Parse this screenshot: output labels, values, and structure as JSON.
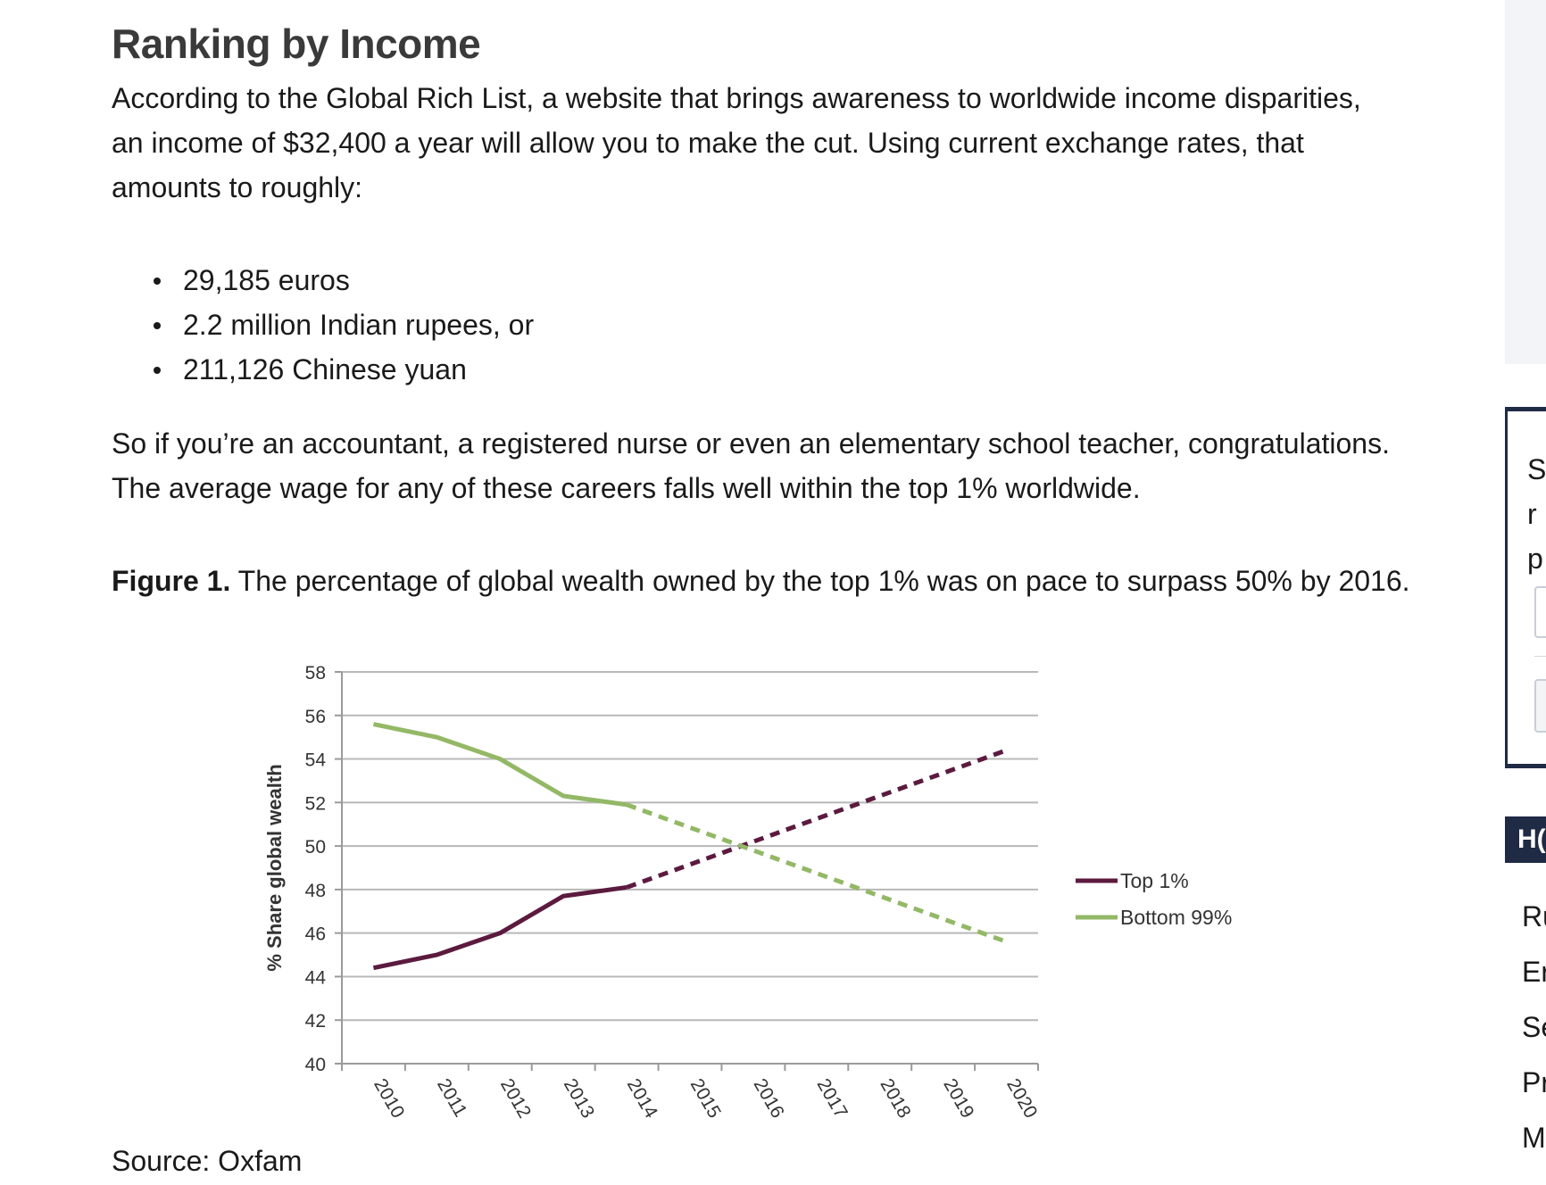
{
  "article": {
    "heading": "Ranking by Income",
    "intro": "According to the Global Rich List, a website that brings awareness to worldwide income disparities, an income of $32,400 a year will allow you to make the cut. Using current exchange rates, that amounts to roughly:",
    "bullets": [
      "29,185 euros",
      "2.2 million Indian rupees, or",
      "211,126 Chinese yuan"
    ],
    "para2": "So if you’re an accountant, a registered nurse or even an elementary school teacher, congratulations. The average wage for any of these careers falls well within the top 1% worldwide.",
    "figure_label": "Figure 1.",
    "figure_text": " The percentage of global wealth owned by the top 1% was on pace to surpass 50% by 2016.",
    "source": "Source: Oxfam"
  },
  "chart_data": {
    "type": "line",
    "x": [
      2010,
      2011,
      2012,
      2013,
      2014,
      2015,
      2016,
      2017,
      2018,
      2019,
      2020
    ],
    "ylabel": "% Share global wealth",
    "ylim": [
      40,
      58
    ],
    "yticks": [
      40,
      42,
      44,
      46,
      48,
      50,
      52,
      54,
      56,
      58
    ],
    "grid": true,
    "legend_position": "right",
    "series": [
      {
        "name": "Top 1%",
        "color": "#5c1a3f",
        "actual": [
          [
            2010,
            44.4
          ],
          [
            2011,
            45.0
          ],
          [
            2012,
            46.0
          ],
          [
            2013,
            47.7
          ],
          [
            2014,
            48.1
          ]
        ],
        "projected": [
          [
            2014,
            48.1
          ],
          [
            2020,
            54.4
          ]
        ]
      },
      {
        "name": "Bottom 99%",
        "color": "#93b866",
        "actual": [
          [
            2010,
            55.6
          ],
          [
            2011,
            55.0
          ],
          [
            2012,
            54.0
          ],
          [
            2013,
            52.3
          ],
          [
            2014,
            51.9
          ]
        ],
        "projected": [
          [
            2014,
            51.9
          ],
          [
            2020,
            45.6
          ]
        ]
      }
    ]
  },
  "sidebar": {
    "card_lines": [
      "S",
      "r",
      "p"
    ],
    "tab_label": "H(",
    "links": [
      "Ru",
      "Er",
      "Se",
      "Pr",
      "M"
    ]
  }
}
